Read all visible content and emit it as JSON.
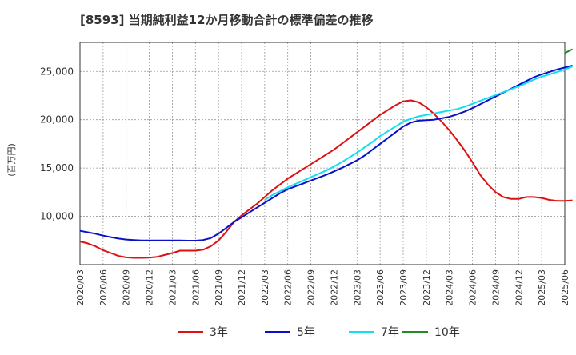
{
  "chart_data": {
    "type": "line",
    "title": "[8593]  当期純利益12か月移動合計の標準偏差の推移",
    "ylabel": "(百万円)",
    "xlabel": "",
    "ylim": [
      5000,
      28000
    ],
    "yticks": [
      10000,
      15000,
      20000,
      25000
    ],
    "ytick_labels": [
      "10,000",
      "15,000",
      "20,000",
      "25,000"
    ],
    "x_ticks": [
      "2020/03",
      "2020/06",
      "2020/09",
      "2020/12",
      "2021/03",
      "2021/06",
      "2021/09",
      "2021/12",
      "2022/03",
      "2022/06",
      "2022/09",
      "2022/12",
      "2023/03",
      "2023/06",
      "2023/09",
      "2023/12",
      "2024/03",
      "2024/06",
      "2024/09",
      "2024/12",
      "2025/03",
      "2025/06"
    ],
    "grid": true,
    "legend_position": "bottom",
    "series": [
      {
        "name": "3年",
        "color": "#dd1111",
        "values": [
          7400,
          7200,
          6900,
          6500,
          6200,
          5900,
          5750,
          5700,
          5700,
          5720,
          5800,
          6000,
          6200,
          6450,
          6450,
          6450,
          6550,
          6900,
          7500,
          8400,
          9400,
          10100,
          10700,
          11300,
          12000,
          12700,
          13300,
          13900,
          14400,
          14900,
          15400,
          15900,
          16400,
          16900,
          17500,
          18100,
          18700,
          19300,
          19900,
          20500,
          21000,
          21500,
          21900,
          22000,
          21800,
          21300,
          20600,
          19800,
          18900,
          17900,
          16800,
          15600,
          14300,
          13300,
          12500,
          12000,
          11800,
          11800,
          12000,
          12000,
          11900,
          11700,
          11600,
          11600,
          11650
        ]
      },
      {
        "name": "5年",
        "color": "#0a10c8",
        "values": [
          8500,
          8350,
          8200,
          8000,
          7850,
          7700,
          7600,
          7550,
          7500,
          7500,
          7500,
          7500,
          7500,
          7500,
          7480,
          7480,
          7550,
          7750,
          8200,
          8800,
          9400,
          9900,
          10400,
          10900,
          11400,
          11900,
          12400,
          12800,
          13100,
          13400,
          13700,
          14000,
          14300,
          14650,
          15000,
          15400,
          15800,
          16300,
          16900,
          17500,
          18100,
          18700,
          19300,
          19700,
          19900,
          19950,
          20000,
          20150,
          20300,
          20550,
          20850,
          21200,
          21600,
          22000,
          22400,
          22800,
          23200,
          23600,
          24000,
          24400,
          24700,
          24950,
          25200,
          25400,
          25600
        ]
      },
      {
        "name": "7年",
        "color": "#11dff0",
        "values": [
          null,
          null,
          null,
          null,
          null,
          null,
          null,
          null,
          null,
          null,
          null,
          null,
          null,
          null,
          null,
          null,
          null,
          null,
          null,
          null,
          null,
          null,
          null,
          null,
          11700,
          12200,
          12600,
          13000,
          13350,
          13700,
          14050,
          14400,
          14750,
          15150,
          15600,
          16100,
          16600,
          17150,
          17700,
          18300,
          18800,
          19300,
          19800,
          20100,
          20350,
          20500,
          20650,
          20800,
          20950,
          21100,
          21350,
          21650,
          21950,
          22250,
          22550,
          22850,
          23150,
          23450,
          23800,
          24150,
          24450,
          24700,
          24950,
          25200,
          25500
        ]
      },
      {
        "name": "10年",
        "color": "#228b22",
        "values": [
          null,
          null,
          null,
          null,
          null,
          null,
          null,
          null,
          null,
          null,
          null,
          null,
          null,
          null,
          null,
          null,
          null,
          null,
          null,
          null,
          null,
          null,
          null,
          null,
          null,
          null,
          null,
          null,
          null,
          null,
          null,
          null,
          null,
          null,
          null,
          null,
          null,
          null,
          null,
          null,
          null,
          null,
          null,
          null,
          null,
          null,
          null,
          null,
          null,
          null,
          null,
          null,
          null,
          null,
          null,
          null,
          null,
          null,
          null,
          null,
          null,
          null,
          null,
          26900,
          27300
        ]
      }
    ]
  }
}
